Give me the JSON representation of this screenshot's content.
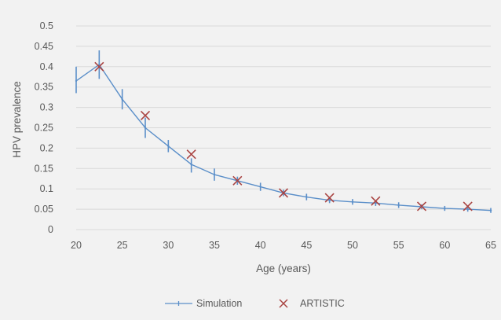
{
  "chart_data": {
    "type": "line",
    "title": "",
    "xlabel": "Age (years)",
    "ylabel": "HPV prevalence",
    "xlim": [
      20,
      65
    ],
    "ylim": [
      0,
      0.5
    ],
    "x_ticks": [
      "20",
      "25",
      "30",
      "35",
      "40",
      "45",
      "50",
      "55",
      "60",
      "65"
    ],
    "y_ticks": [
      "0",
      "0.05",
      "0.1",
      "0.15",
      "0.2",
      "0.25",
      "0.3",
      "0.35",
      "0.4",
      "0.45",
      "0.5"
    ],
    "grid": "horizontal",
    "legend_position": "bottom",
    "series": [
      {
        "name": "Simulation",
        "style": "line with error bars",
        "color": "#5b8fc9",
        "x": [
          20,
          22.5,
          25,
          27.5,
          30,
          32.5,
          35,
          37.5,
          40,
          42.5,
          45,
          47.5,
          50,
          52.5,
          55,
          57.5,
          60,
          62.5,
          65
        ],
        "y": [
          0.365,
          0.405,
          0.32,
          0.25,
          0.205,
          0.16,
          0.135,
          0.12,
          0.105,
          0.09,
          0.08,
          0.072,
          0.068,
          0.065,
          0.06,
          0.056,
          0.052,
          0.05,
          0.047
        ],
        "low": [
          0.335,
          0.37,
          0.295,
          0.225,
          0.19,
          0.14,
          0.12,
          0.11,
          0.095,
          0.082,
          0.072,
          0.065,
          0.061,
          0.058,
          0.053,
          0.05,
          0.046,
          0.044,
          0.041
        ],
        "high": [
          0.4,
          0.44,
          0.345,
          0.275,
          0.22,
          0.175,
          0.15,
          0.13,
          0.115,
          0.098,
          0.088,
          0.08,
          0.075,
          0.072,
          0.067,
          0.062,
          0.058,
          0.056,
          0.053
        ]
      },
      {
        "name": "ARTISTIC",
        "style": "x markers",
        "color": "#a94442",
        "x": [
          22.5,
          27.5,
          32.5,
          37.5,
          42.5,
          47.5,
          52.5,
          57.5,
          62.5
        ],
        "y": [
          0.4,
          0.28,
          0.185,
          0.12,
          0.09,
          0.078,
          0.07,
          0.057,
          0.057
        ]
      }
    ]
  },
  "colors": {
    "background": "#f2f2f2",
    "gridline": "#d9d9d9",
    "text": "#595959"
  }
}
